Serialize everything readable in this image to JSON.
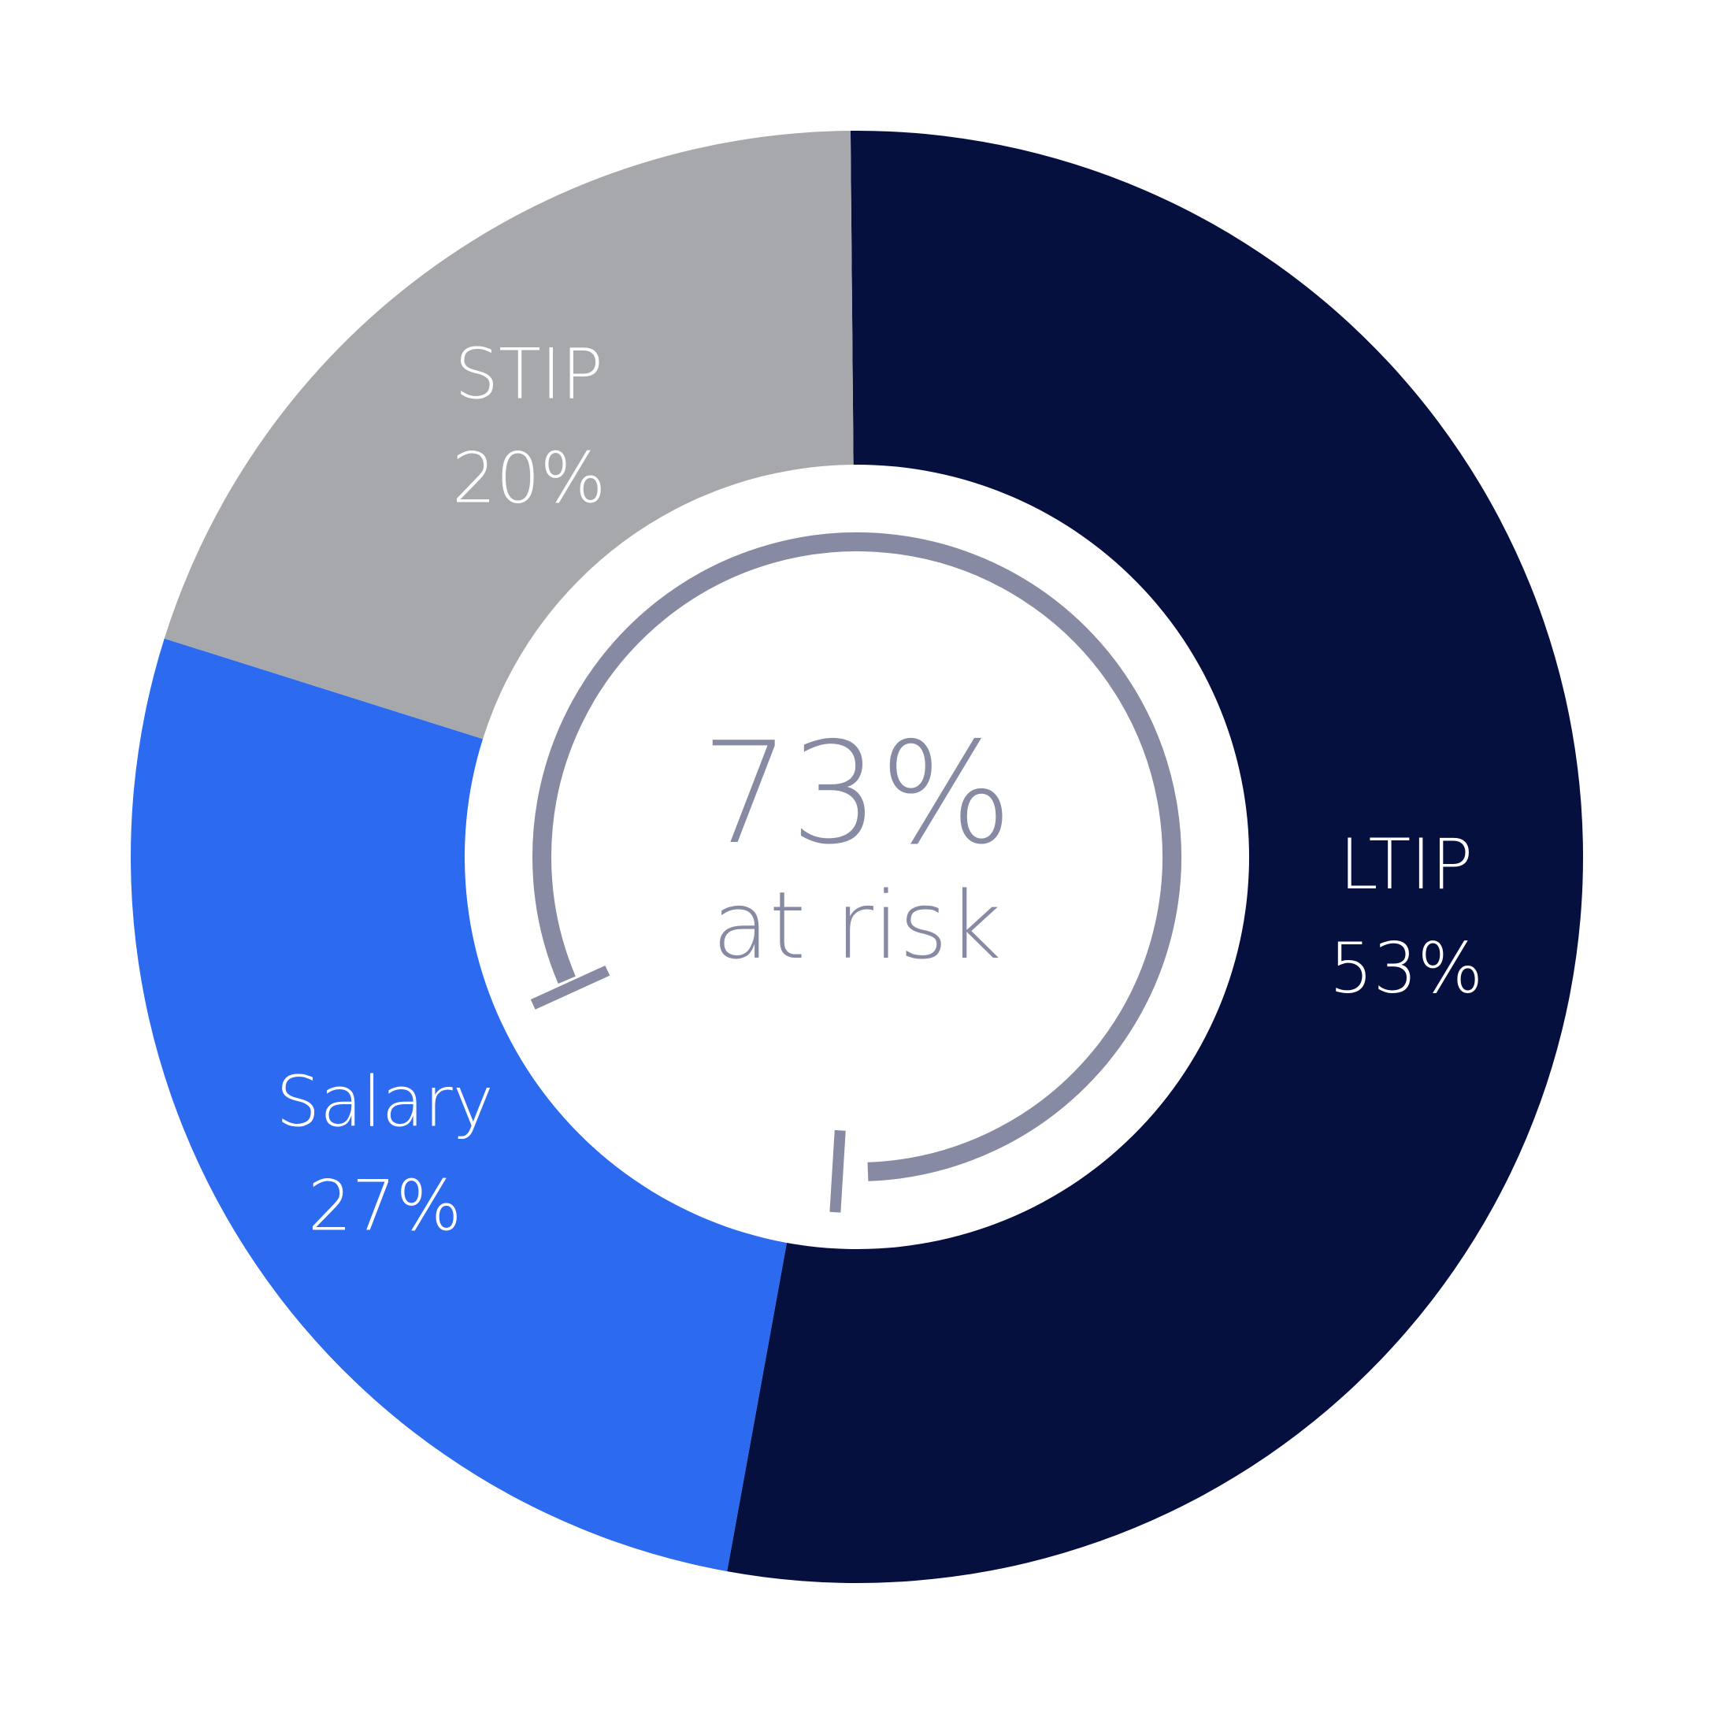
{
  "chart_data": {
    "type": "pie",
    "variant": "donut",
    "slices": [
      {
        "label": "LTIP",
        "value": 53,
        "display": "53%",
        "color": "#06103e"
      },
      {
        "label": "Salary",
        "value": 27,
        "display": "27%",
        "color": "#2c6af0"
      },
      {
        "label": "STIP",
        "value": 20,
        "display": "20%",
        "color": "#a7a8ac"
      }
    ],
    "center": {
      "value": "73%",
      "text": "at risk",
      "color": "#868aa2"
    },
    "legend": "none"
  }
}
